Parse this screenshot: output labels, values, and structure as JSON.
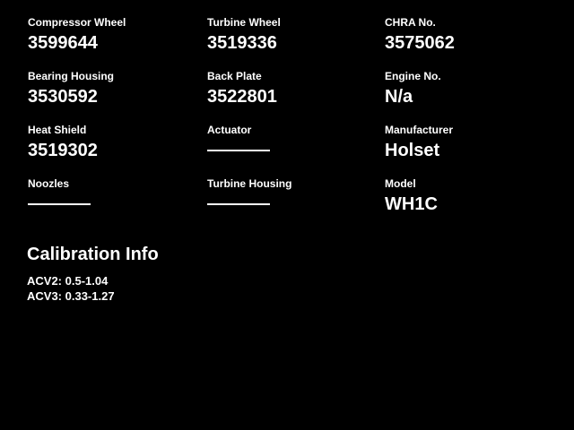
{
  "theme": {
    "background": "#000000",
    "text_color": "#ffffff"
  },
  "fields": [
    {
      "label": "Compressor Wheel",
      "value": "3599644",
      "empty": false
    },
    {
      "label": "Turbine Wheel",
      "value": "3519336",
      "empty": false
    },
    {
      "label": "CHRA No.",
      "value": "3575062",
      "empty": false
    },
    {
      "label": "Bearing Housing",
      "value": "3530592",
      "empty": false
    },
    {
      "label": "Back Plate",
      "value": "3522801",
      "empty": false
    },
    {
      "label": "Engine No.",
      "value": "N/a",
      "empty": false
    },
    {
      "label": "Heat Shield",
      "value": "3519302",
      "empty": false
    },
    {
      "label": "Actuator",
      "value": "",
      "empty": true
    },
    {
      "label": "Manufacturer",
      "value": "Holset",
      "empty": false
    },
    {
      "label": "Noozles",
      "value": "",
      "empty": true
    },
    {
      "label": "Turbine Housing",
      "value": "",
      "empty": true
    },
    {
      "label": "Model",
      "value": "WH1C",
      "empty": false
    }
  ],
  "calibration": {
    "title": "Calibration Info",
    "lines": [
      "ACV2: 0.5-1.04",
      "ACV3: 0.33-1.27"
    ]
  }
}
